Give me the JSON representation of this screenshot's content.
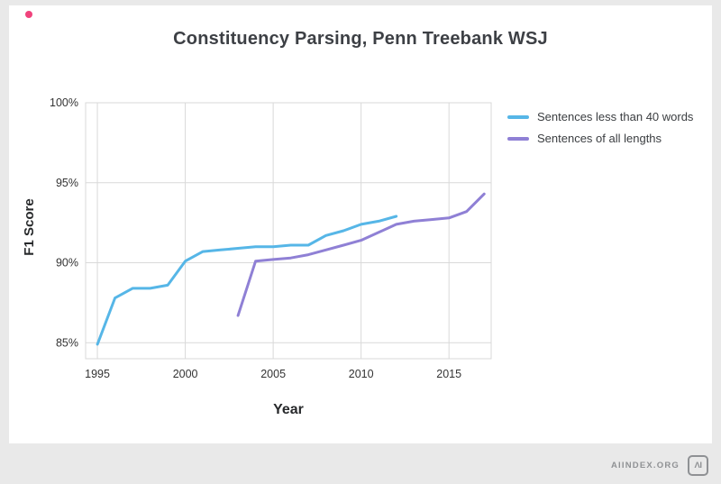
{
  "page": {
    "accent_dot_color": "#f0437c",
    "background_color": "#e9e9e9",
    "footer": {
      "site": "AIINDEX.ORG",
      "logo_text": "ΛI"
    }
  },
  "chart_data": {
    "type": "line",
    "title": "Constituency Parsing, Penn Treebank WSJ",
    "xlabel": "Year",
    "ylabel": "F1 Score",
    "x_ticks": [
      1995,
      2000,
      2005,
      2010,
      2015
    ],
    "y_ticks": [
      85,
      90,
      95,
      100
    ],
    "y_tick_suffix": "%",
    "x_range": [
      1994.33,
      2017.4
    ],
    "y_range": [
      84,
      100
    ],
    "grid": true,
    "grid_color": "#d9d9d9",
    "legend_position": "top-right",
    "series": [
      {
        "name": "Sentences less than 40 words",
        "color": "#56b6e7",
        "points": [
          [
            1995,
            84.9
          ],
          [
            1996,
            87.8
          ],
          [
            1997,
            88.4
          ],
          [
            1998,
            88.4
          ],
          [
            1999,
            88.6
          ],
          [
            2000,
            90.1
          ],
          [
            2001,
            90.7
          ],
          [
            2002,
            90.8
          ],
          [
            2003,
            90.9
          ],
          [
            2004,
            91.0
          ],
          [
            2005,
            91.0
          ],
          [
            2006,
            91.1
          ],
          [
            2007,
            91.1
          ],
          [
            2008,
            91.7
          ],
          [
            2009,
            92.0
          ],
          [
            2010,
            92.4
          ],
          [
            2011,
            92.6
          ],
          [
            2012,
            92.9
          ]
        ]
      },
      {
        "name": "Sentences of all lengths",
        "color": "#8f80d5",
        "points": [
          [
            2003,
            86.7
          ],
          [
            2004,
            90.1
          ],
          [
            2005,
            90.2
          ],
          [
            2006,
            90.3
          ],
          [
            2007,
            90.5
          ],
          [
            2008,
            90.8
          ],
          [
            2009,
            91.1
          ],
          [
            2010,
            91.4
          ],
          [
            2011,
            91.9
          ],
          [
            2012,
            92.4
          ],
          [
            2013,
            92.6
          ],
          [
            2014,
            92.7
          ],
          [
            2015,
            92.8
          ],
          [
            2016,
            93.2
          ],
          [
            2017,
            94.3
          ]
        ]
      }
    ]
  }
}
